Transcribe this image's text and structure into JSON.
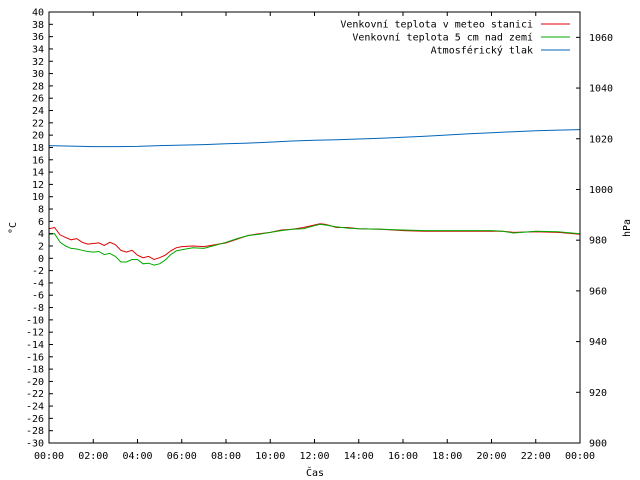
{
  "chart_data": {
    "type": "line",
    "xlabel": "Čas",
    "ylabel_left": "°C",
    "ylabel_right": "hPa",
    "x_ticks": [
      "00:00",
      "02:00",
      "04:00",
      "06:00",
      "08:00",
      "10:00",
      "12:00",
      "14:00",
      "16:00",
      "18:00",
      "20:00",
      "22:00",
      "00:00"
    ],
    "x_range_hours": [
      0,
      24
    ],
    "y_left_range": [
      -30,
      40
    ],
    "y_left_step": 2,
    "y_right_range": [
      900,
      1070
    ],
    "y_right_ticks": [
      900,
      920,
      940,
      960,
      980,
      1000,
      1020,
      1040,
      1060
    ],
    "grid": false,
    "legend_position": "top-right",
    "series": [
      {
        "name": "Venkovní teplota v meteo stanici",
        "axis": "left",
        "color": "#dd0000",
        "x": [
          0,
          0.25,
          0.5,
          0.75,
          1,
          1.25,
          1.5,
          1.75,
          2,
          2.25,
          2.5,
          2.75,
          3,
          3.25,
          3.5,
          3.75,
          4,
          4.25,
          4.5,
          4.75,
          5,
          5.25,
          5.5,
          5.75,
          6,
          6.5,
          7,
          7.5,
          8,
          8.5,
          9,
          9.5,
          10,
          10.5,
          11,
          11.5,
          12,
          12.25,
          12.5,
          13,
          13.5,
          14,
          15,
          16,
          17,
          18,
          19,
          20,
          20.5,
          21,
          22,
          23,
          24
        ],
        "y": [
          4.8,
          5.0,
          3.8,
          3.4,
          3.0,
          3.2,
          2.6,
          2.3,
          2.4,
          2.5,
          2.1,
          2.6,
          2.2,
          1.3,
          1.0,
          1.3,
          0.5,
          0.1,
          0.3,
          -0.2,
          0.1,
          0.5,
          1.2,
          1.7,
          1.9,
          2.0,
          1.9,
          2.2,
          2.5,
          3.1,
          3.7,
          4.0,
          4.2,
          4.6,
          4.7,
          5.0,
          5.4,
          5.6,
          5.5,
          5.0,
          5.0,
          4.8,
          4.7,
          4.5,
          4.4,
          4.4,
          4.4,
          4.4,
          4.4,
          4.2,
          4.3,
          4.2,
          3.9
        ]
      },
      {
        "name": "Venkovní teplota 5 cm nad zemí",
        "axis": "left",
        "color": "#00aa00",
        "x": [
          0,
          0.25,
          0.5,
          0.75,
          1,
          1.25,
          1.5,
          1.75,
          2,
          2.25,
          2.5,
          2.75,
          3,
          3.25,
          3.5,
          3.75,
          4,
          4.25,
          4.5,
          4.75,
          5,
          5.25,
          5.5,
          5.75,
          6,
          6.5,
          7,
          7.5,
          8,
          8.5,
          9,
          9.5,
          10,
          10.5,
          11,
          11.5,
          12,
          12.25,
          12.5,
          13,
          13.5,
          14,
          15,
          16,
          17,
          18,
          19,
          20,
          20.5,
          21,
          22,
          23,
          24
        ],
        "y": [
          3.9,
          4.0,
          2.6,
          2.0,
          1.6,
          1.5,
          1.3,
          1.1,
          1.0,
          1.1,
          0.6,
          0.8,
          0.3,
          -0.6,
          -0.6,
          -0.2,
          -0.2,
          -0.9,
          -0.8,
          -1.1,
          -0.9,
          -0.3,
          0.6,
          1.2,
          1.4,
          1.7,
          1.6,
          2.1,
          2.6,
          3.2,
          3.7,
          3.9,
          4.2,
          4.5,
          4.7,
          4.8,
          5.3,
          5.5,
          5.4,
          5.1,
          4.9,
          4.8,
          4.7,
          4.6,
          4.5,
          4.5,
          4.5,
          4.5,
          4.4,
          4.1,
          4.4,
          4.3,
          4.0
        ]
      },
      {
        "name": "Atmosférický tlak",
        "axis": "right",
        "color": "#0066bb",
        "x": [
          0,
          1,
          2,
          3,
          4,
          5,
          6,
          7,
          8,
          9,
          10,
          11,
          12,
          13,
          14,
          15,
          16,
          17,
          18,
          19,
          20,
          21,
          22,
          23,
          24
        ],
        "y": [
          1017.3,
          1017.1,
          1016.9,
          1016.9,
          1017.0,
          1017.3,
          1017.5,
          1017.7,
          1018.0,
          1018.3,
          1018.7,
          1019.1,
          1019.4,
          1019.6,
          1019.9,
          1020.2,
          1020.6,
          1021.0,
          1021.5,
          1022.0,
          1022.4,
          1022.8,
          1023.2,
          1023.4,
          1023.6
        ]
      }
    ]
  }
}
